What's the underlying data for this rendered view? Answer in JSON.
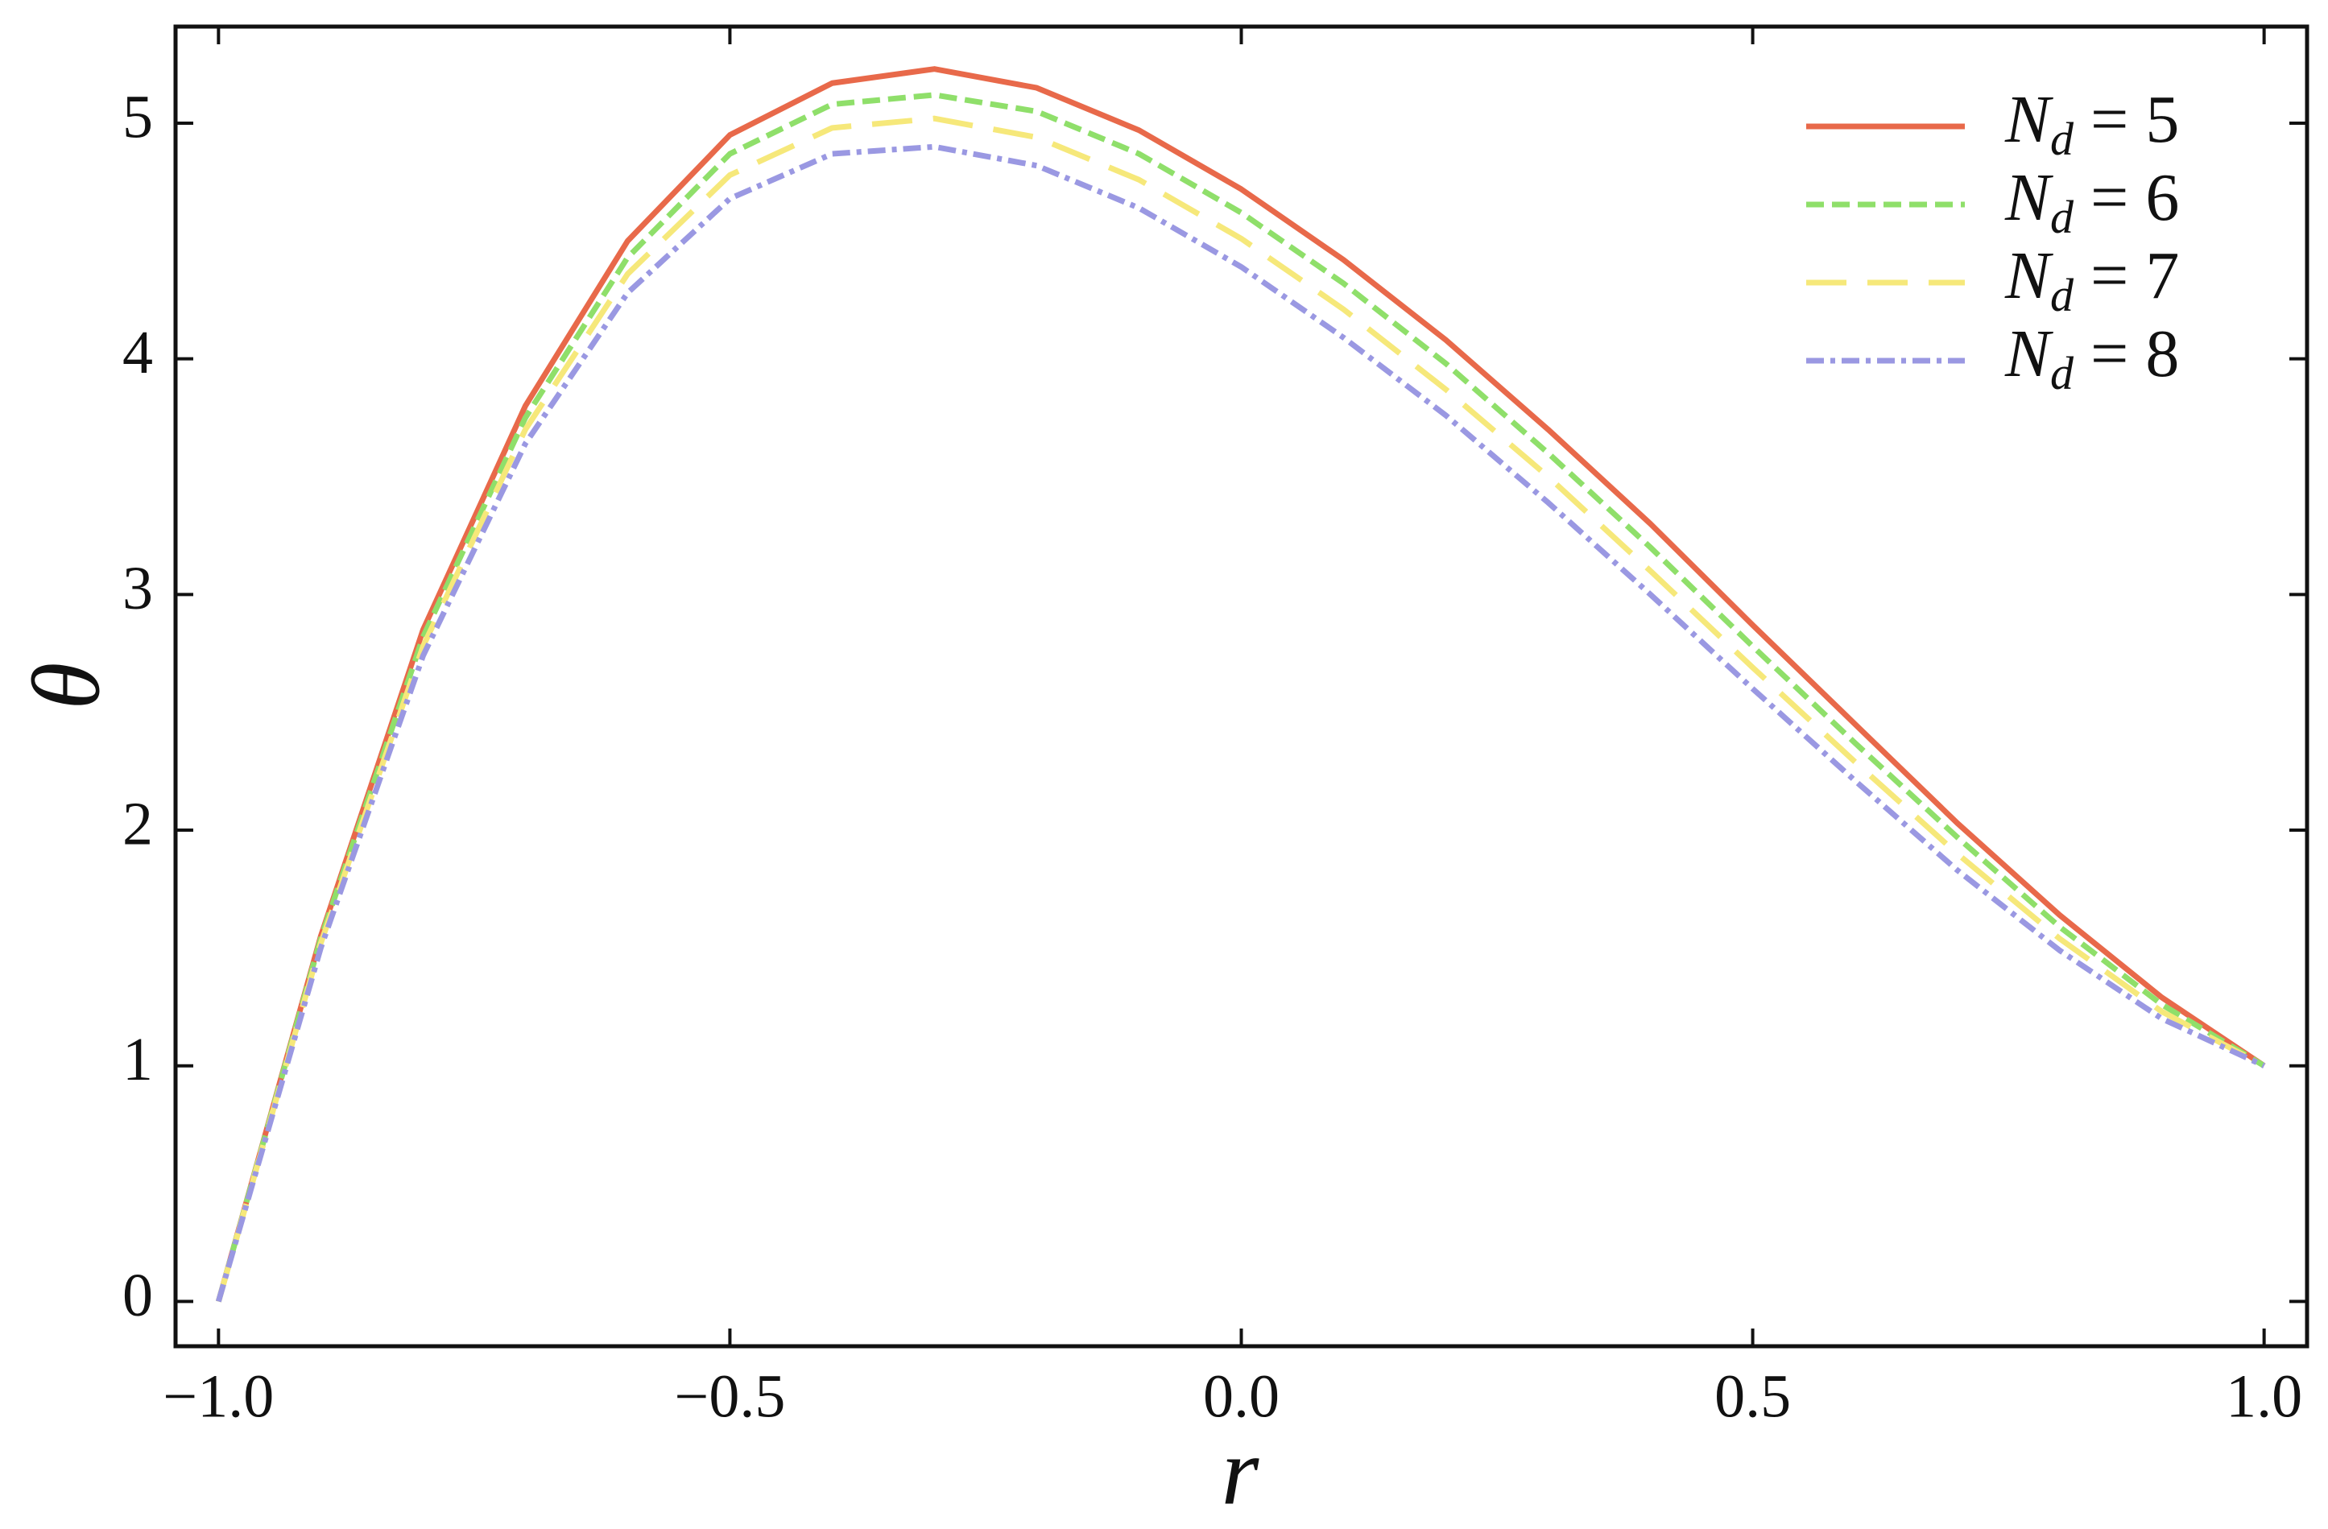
{
  "chart_data": {
    "type": "line",
    "xlabel": "r",
    "ylabel": "θ",
    "x": [
      -1.0,
      -0.9,
      -0.8,
      -0.7,
      -0.6,
      -0.5,
      -0.4,
      -0.3,
      -0.2,
      -0.1,
      0.0,
      0.1,
      0.2,
      0.3,
      0.4,
      0.5,
      0.6,
      0.7,
      0.8,
      0.9,
      1.0
    ],
    "series": [
      {
        "name": "Nd = 5",
        "color": "#e8694a",
        "dash": "solid",
        "values": [
          0,
          1.55,
          2.85,
          3.8,
          4.5,
          4.95,
          5.17,
          5.23,
          5.15,
          4.97,
          4.72,
          4.42,
          4.08,
          3.7,
          3.3,
          2.87,
          2.45,
          2.03,
          1.64,
          1.29,
          1.0
        ]
      },
      {
        "name": "Nd = 6",
        "color": "#8fdf6a",
        "dash": "dashed",
        "values": [
          0,
          1.54,
          2.82,
          3.75,
          4.43,
          4.87,
          5.08,
          5.12,
          5.05,
          4.87,
          4.62,
          4.32,
          3.98,
          3.6,
          3.2,
          2.78,
          2.37,
          1.97,
          1.59,
          1.26,
          1.0
        ]
      },
      {
        "name": "Nd = 7",
        "color": "#f6e87a",
        "dash": "long-dashed",
        "values": [
          0,
          1.52,
          2.78,
          3.7,
          4.36,
          4.78,
          4.98,
          5.02,
          4.94,
          4.76,
          4.51,
          4.21,
          3.87,
          3.5,
          3.1,
          2.69,
          2.29,
          1.9,
          1.54,
          1.23,
          1.0
        ]
      },
      {
        "name": "Nd = 8",
        "color": "#9a98e2",
        "dash": "dash-dot",
        "values": [
          0,
          1.5,
          2.74,
          3.64,
          4.28,
          4.68,
          4.87,
          4.9,
          4.82,
          4.64,
          4.39,
          4.09,
          3.76,
          3.39,
          3.0,
          2.6,
          2.21,
          1.83,
          1.49,
          1.2,
          1.0
        ]
      }
    ],
    "xlim": [
      -1.042,
      1.042
    ],
    "ylim": [
      -0.19,
      5.41
    ],
    "xticks": [
      {
        "value": -1.0,
        "label": "−1.0"
      },
      {
        "value": -0.5,
        "label": "−0.5"
      },
      {
        "value": 0.0,
        "label": "0.0"
      },
      {
        "value": 0.5,
        "label": "0.5"
      },
      {
        "value": 1.0,
        "label": "1.0"
      }
    ],
    "yticks": [
      0,
      1,
      2,
      3,
      4,
      5
    ],
    "grid": false,
    "legend": "top-right"
  }
}
